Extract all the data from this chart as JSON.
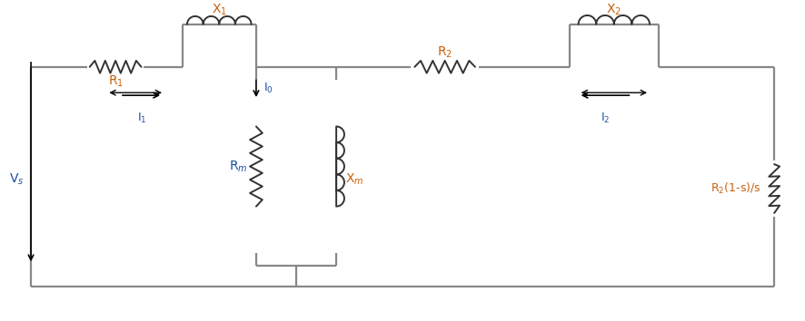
{
  "fig_width": 8.86,
  "fig_height": 3.54,
  "dpi": 100,
  "bg_color": "#ffffff",
  "line_color": "#888888",
  "line_width": 1.6,
  "component_color": "#333333",
  "label_color_orange": "#c8600a",
  "label_color_blue": "#1a4fa0",
  "vs_label": "V$_s$",
  "r1_label": "R$_1$",
  "x1_label": "X$_1$",
  "r2_label": "R$_2$",
  "x2_label": "X$_2$",
  "rm_label": "R$_m$",
  "xm_label": "X$_m$",
  "i0_label": "I$_0$",
  "i1_label": "I$_1$",
  "i2_label": "I$_2$",
  "r2s_label": "R$_2$(1-s)/s"
}
